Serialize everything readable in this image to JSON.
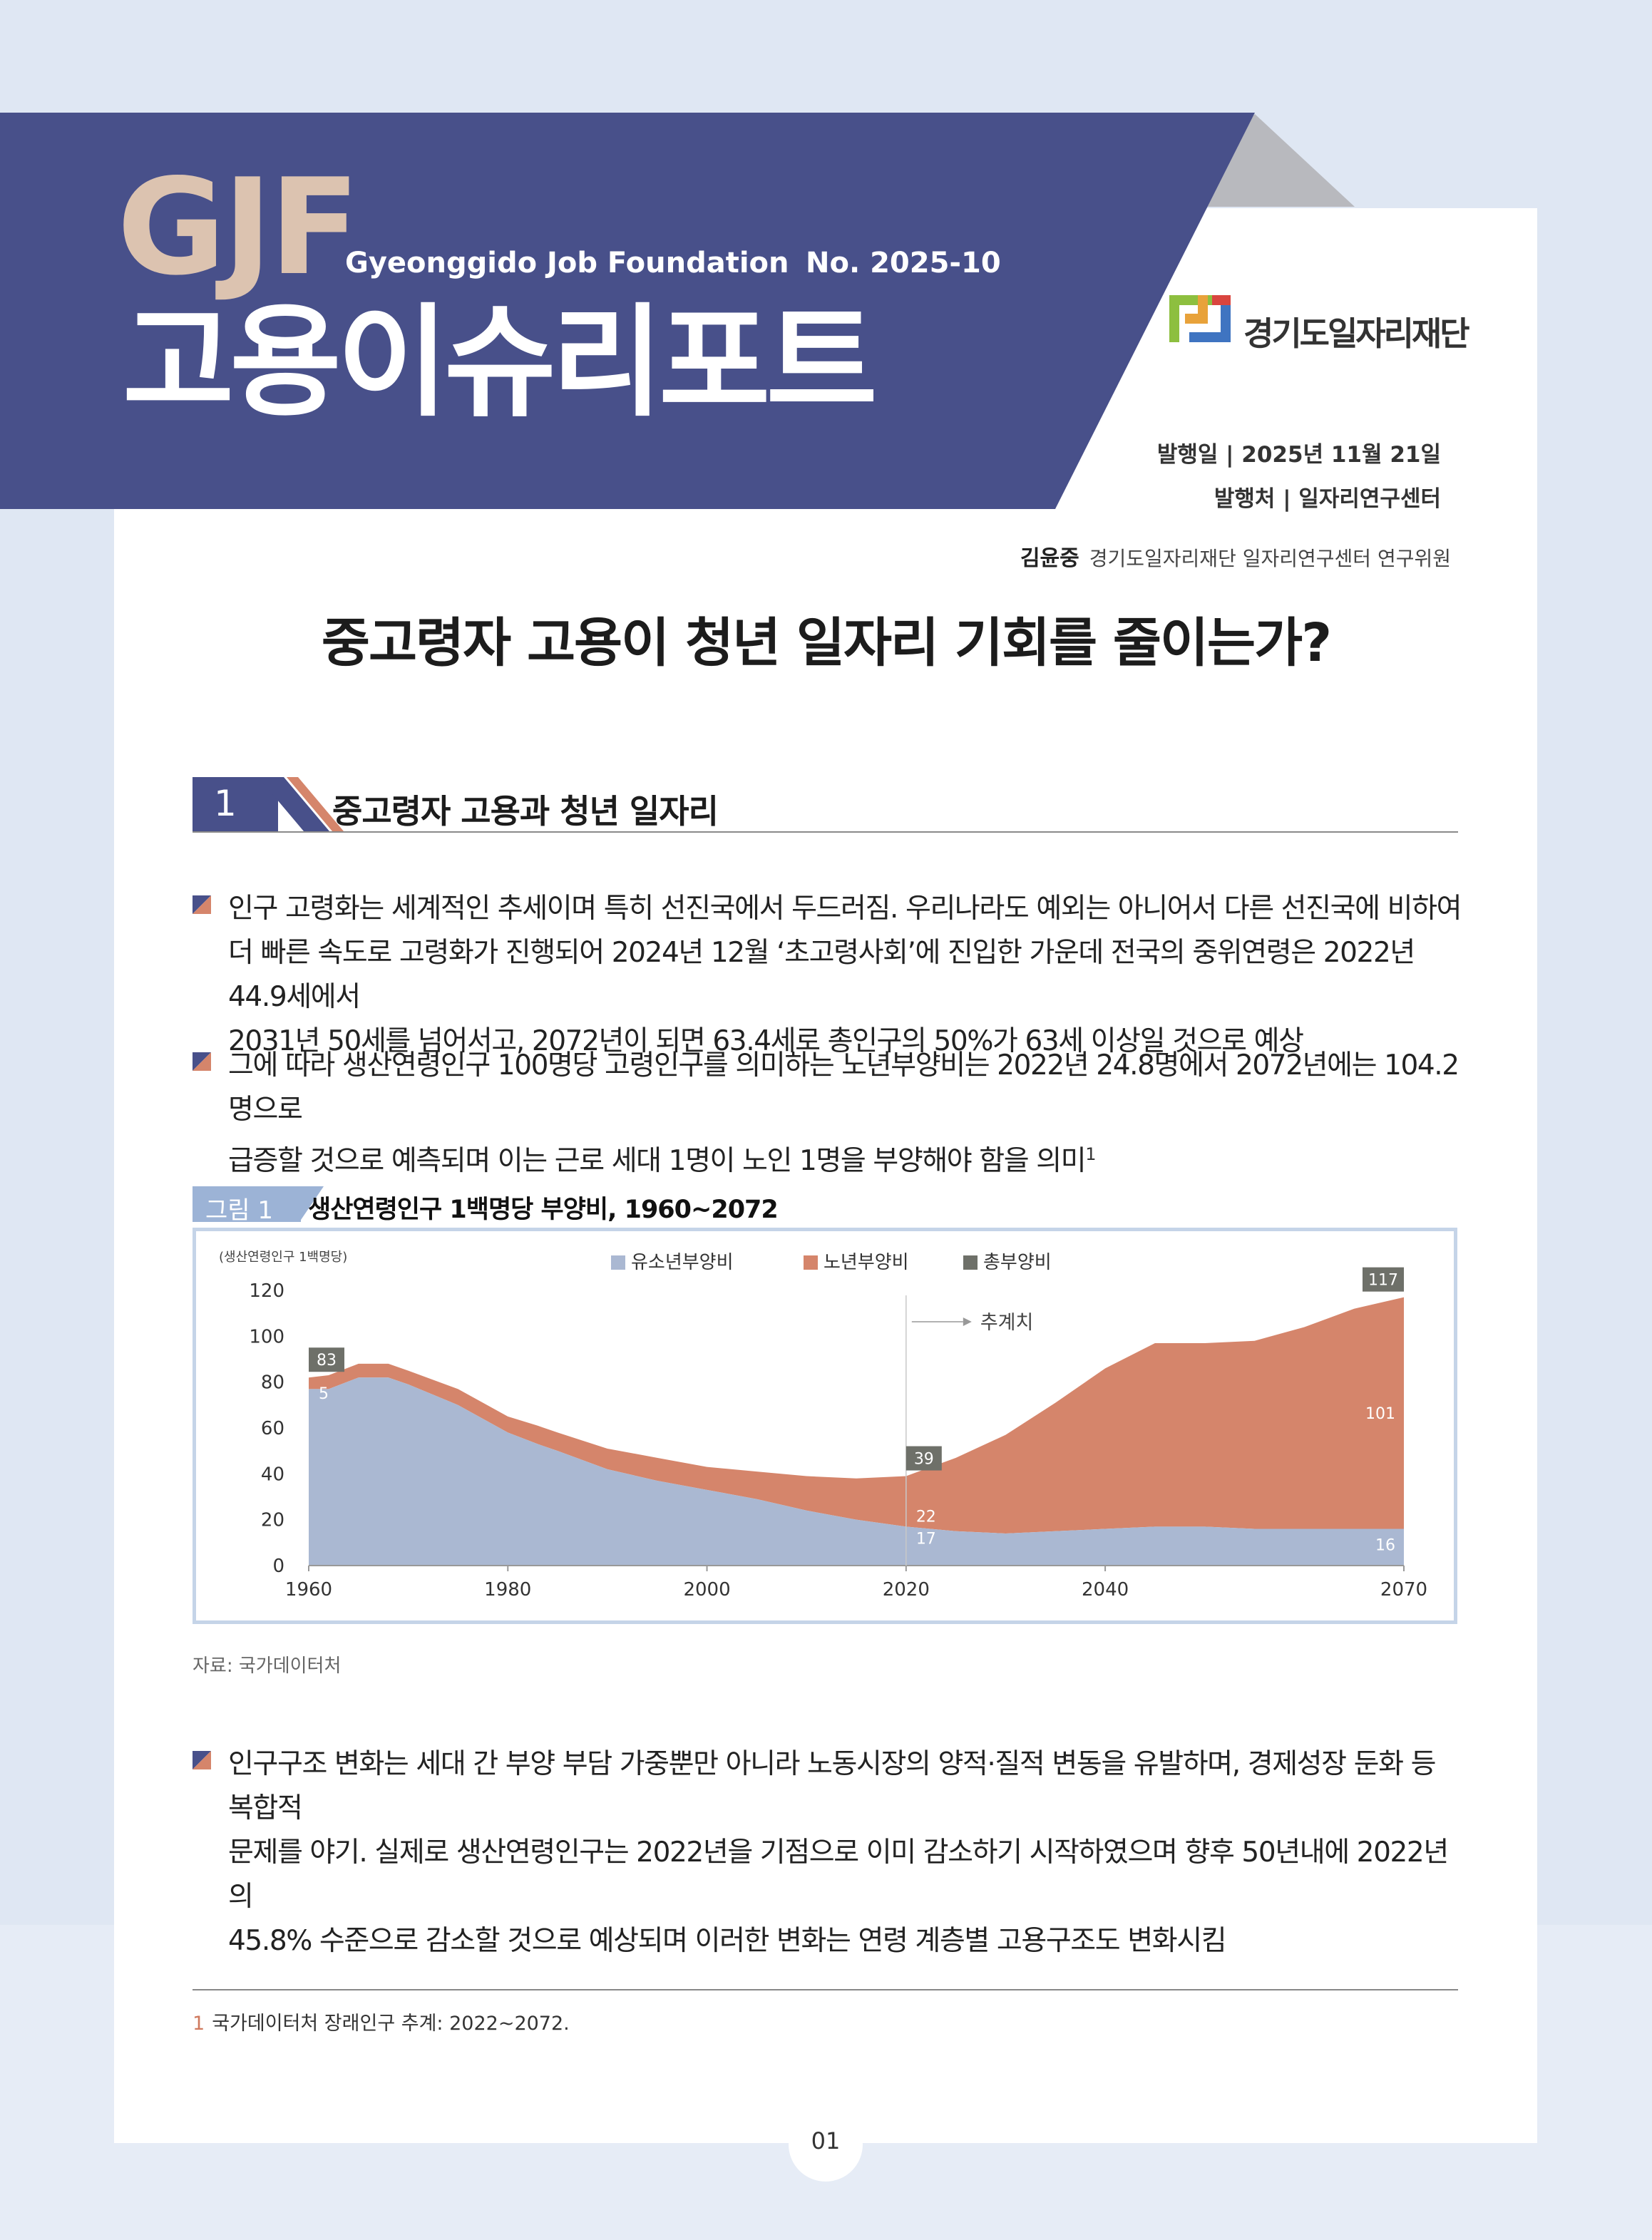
{
  "header": {
    "logo_abbr": "GJF",
    "org_english": "Gyeonggido Job Foundation",
    "issue_no": "No. 2025-10",
    "report_title": "고용이슈리포트",
    "org_logo_text": "경기도일자리재단",
    "publish_date": "발행일 | 2025년 11월 21일",
    "publisher": "발행처 | 일자리연구센터",
    "author_name": "김윤중",
    "author_affiliation": "경기도일자리재단 일자리연구센터 연구위원",
    "accent_color": "#48508a",
    "gjf_color": "#dcc3b0"
  },
  "headline": "중고령자 고용이 청년 일자리 기회를 줄이는가?",
  "section": {
    "number": "1",
    "title": "중고령자 고용과 청년 일자리"
  },
  "bullets": [
    {
      "lines": [
        "인구 고령화는 세계적인 추세이며 특히 선진국에서 두드러짐. 우리나라도 예외는 아니어서 다른 선진국에 비하여",
        "더 빠른 속도로 고령화가 진행되어 2024년 12월 ‘초고령사회’에 진입한 가운데 전국의 중위연령은 2022년 44.9세에서",
        "2031년 50세를 넘어서고, 2072년이 되면 63.4세로 총인구의 50%가 63세 이상일 것으로 예상"
      ]
    },
    {
      "lines": [
        "그에 따라 생산연령인구 100명당 고령인구를 의미하는 노년부양비는 2022년 24.8명에서 2072년에는 104.2명으로",
        "급증할 것으로 예측되며 이는 근로 세대 1명이 노인 1명을 부양해야 함을 의미"
      ],
      "footnote_ref": "1"
    },
    {
      "lines": [
        "인구구조 변화는 세대 간 부양 부담 가중뿐만 아니라 노동시장의 양적·질적 변동을 유발하며, 경제성장 둔화 등 복합적",
        "문제를 야기. 실제로 생산연령인구는 2022년을 기점으로 이미 감소하기 시작하였으며 향후 50년내에 2022년의",
        "45.8% 수준으로 감소할 것으로 예상되며 이러한 변화는 연령 계층별 고용구조도 변화시킴"
      ]
    }
  ],
  "figure": {
    "label": "그림 1",
    "title": "생산연령인구 1백명당 부양비, 1960~2072",
    "source": "자료: 국가데이터처"
  },
  "chart_data": {
    "type": "area",
    "title": "생산연령인구 1백명당 부양비, 1960~2072",
    "ylabel": "(생산연령인구 1백명당)",
    "xlim": [
      1960,
      2070
    ],
    "ylim": [
      0,
      120
    ],
    "x_ticks": [
      "1960",
      "1980",
      "2000",
      "2020",
      "2040",
      "2070"
    ],
    "y_ticks": [
      "0",
      "20",
      "40",
      "60",
      "80",
      "100",
      "120"
    ],
    "legend_position": "top",
    "projection_marker": {
      "x": 2020,
      "label": "추계치"
    },
    "colors": {
      "youth": "#aab8d2",
      "elderly": "#d5856b",
      "total_badge": "#6e7069",
      "frame": "#c5d4e8"
    },
    "series": [
      {
        "name": "유소년부양비",
        "x": [
          1960,
          1962,
          1965,
          1968,
          1970,
          1975,
          1980,
          1983,
          1985,
          1990,
          1995,
          2000,
          2005,
          2010,
          2015,
          2020,
          2025,
          2030,
          2035,
          2040,
          2045,
          2050,
          2055,
          2060,
          2065,
          2070
        ],
        "values": [
          77,
          77,
          82,
          82,
          79,
          70,
          58,
          53,
          50,
          42,
          37,
          33,
          29,
          24,
          20,
          17,
          15,
          14,
          15,
          16,
          17,
          17,
          16,
          16,
          16,
          16
        ]
      },
      {
        "name": "노년부양비",
        "x": [
          1960,
          1962,
          1965,
          1968,
          1970,
          1975,
          1980,
          1983,
          1985,
          1990,
          1995,
          2000,
          2005,
          2010,
          2015,
          2020,
          2025,
          2030,
          2035,
          2040,
          2045,
          2050,
          2055,
          2060,
          2065,
          2070
        ],
        "values": [
          5,
          6,
          6,
          6,
          6,
          7,
          7,
          8,
          8,
          9,
          10,
          10,
          12,
          15,
          18,
          22,
          32,
          43,
          56,
          70,
          80,
          80,
          82,
          88,
          96,
          101
        ]
      }
    ],
    "total_series_name": "총부양비",
    "labels": [
      {
        "x": 1960,
        "series": "총부양비",
        "value": "83"
      },
      {
        "x": 1960,
        "series": "노년부양비",
        "value": "5"
      },
      {
        "x": 1960,
        "series": "유소년부양비",
        "value": "77"
      },
      {
        "x": 2020,
        "series": "총부양비",
        "value": "39"
      },
      {
        "x": 2020,
        "series": "노년부양비",
        "value": "22"
      },
      {
        "x": 2020,
        "series": "유소년부양비",
        "value": "17"
      },
      {
        "x": 2070,
        "series": "총부양비",
        "value": "117"
      },
      {
        "x": 2070,
        "series": "노년부양비",
        "value": "101"
      },
      {
        "x": 2070,
        "series": "유소년부양비",
        "value": "16"
      }
    ]
  },
  "footnote": {
    "number": "1",
    "text": "국가데이터처 장래인구 추계: 2022~2072."
  },
  "page_number": "01"
}
